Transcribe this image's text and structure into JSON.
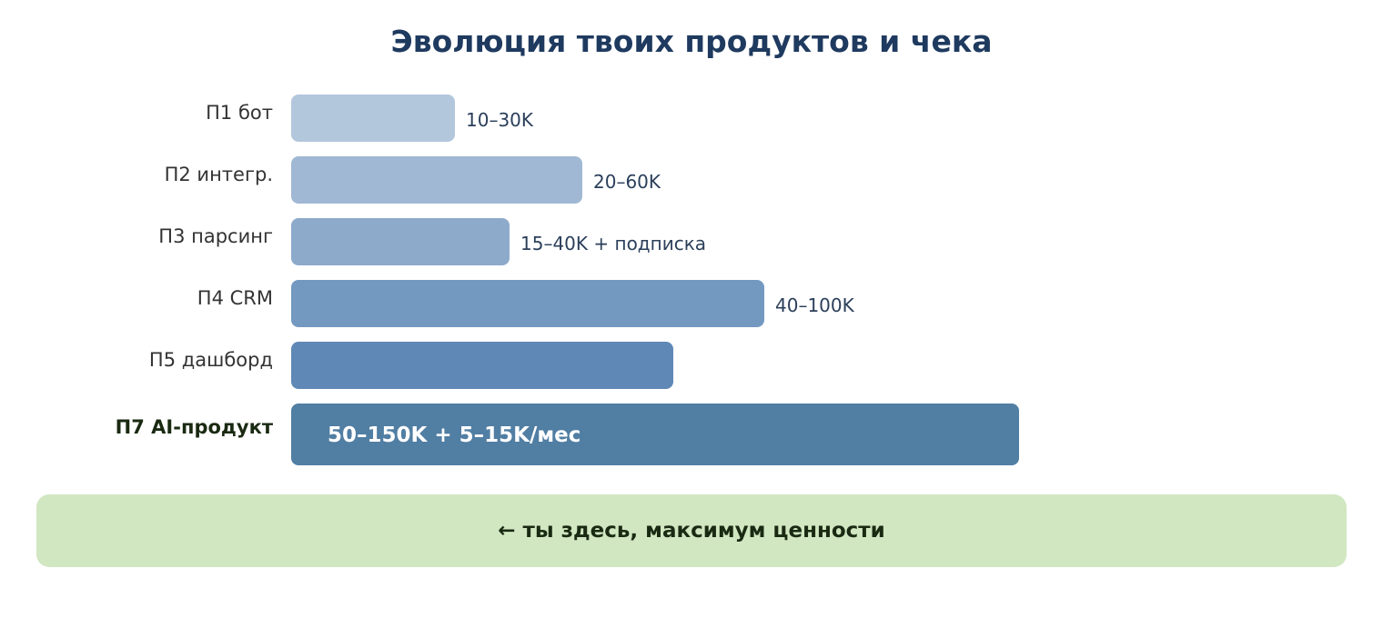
{
  "header": {
    "title": "Эволюция твоих продуктов и чека"
  },
  "rows": [
    {
      "label": "П1 бот",
      "note": "10–30K"
    },
    {
      "label": "П2 интегр.",
      "note": "20–60K"
    },
    {
      "label": "П3 парсинг",
      "note": "15–40K + подписка"
    },
    {
      "label": "П4 CRM",
      "note": "40–100K"
    },
    {
      "label": "П5 дашборд"
    },
    {
      "label": "П7 AI-продукт",
      "note": "50–150K + 5–15K/мес"
    }
  ],
  "callout": {
    "text": "← ты здесь, максимум ценности"
  }
}
